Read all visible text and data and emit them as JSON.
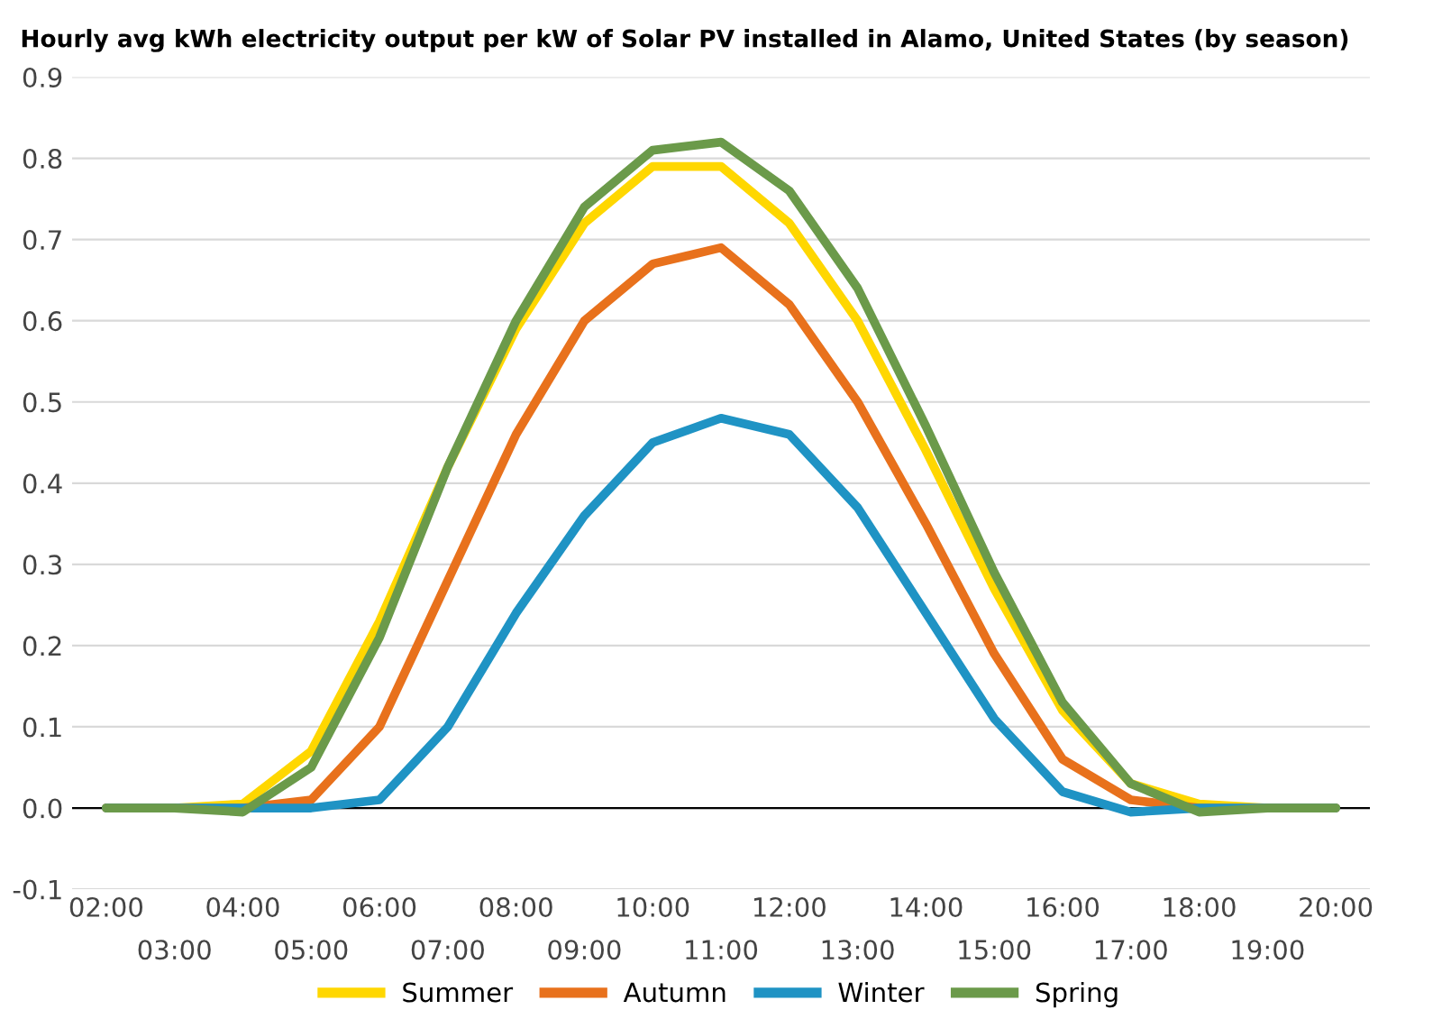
{
  "chart_data": {
    "type": "line",
    "title": "Hourly avg kWh electricity output per kW of Solar PV installed in Alamo, United States (by season)",
    "categories": [
      "02:00",
      "03:00",
      "04:00",
      "05:00",
      "06:00",
      "07:00",
      "08:00",
      "09:00",
      "10:00",
      "11:00",
      "12:00",
      "13:00",
      "14:00",
      "15:00",
      "16:00",
      "17:00",
      "18:00",
      "19:00",
      "20:00"
    ],
    "series": [
      {
        "name": "Summer",
        "color": "#ffd700",
        "values": [
          0,
          0,
          0.005,
          0.07,
          0.23,
          0.42,
          0.59,
          0.72,
          0.79,
          0.79,
          0.72,
          0.6,
          0.44,
          0.27,
          0.12,
          0.03,
          0.005,
          0,
          0
        ]
      },
      {
        "name": "Autumn",
        "color": "#e8711c",
        "values": [
          0,
          0,
          0,
          0.01,
          0.1,
          0.28,
          0.46,
          0.6,
          0.67,
          0.69,
          0.62,
          0.5,
          0.35,
          0.19,
          0.06,
          0.01,
          0,
          0,
          0
        ]
      },
      {
        "name": "Winter",
        "color": "#1f93c4",
        "values": [
          0,
          0,
          0,
          0,
          0.01,
          0.1,
          0.24,
          0.36,
          0.45,
          0.48,
          0.46,
          0.37,
          0.24,
          0.11,
          0.02,
          -0.005,
          0,
          0,
          0
        ]
      },
      {
        "name": "Spring",
        "color": "#6b9a4a",
        "values": [
          0,
          0,
          -0.005,
          0.05,
          0.21,
          0.42,
          0.6,
          0.74,
          0.81,
          0.82,
          0.76,
          0.64,
          0.47,
          0.29,
          0.13,
          0.03,
          -0.005,
          0,
          0
        ]
      }
    ],
    "ylim": [
      -0.1,
      0.9
    ],
    "yticks": [
      -0.1,
      {
        "value": 0,
        "label": "0.0"
      },
      0.1,
      0.2,
      0.3,
      0.4,
      0.5,
      0.6,
      0.7,
      0.8,
      0.9
    ],
    "grid": "y",
    "legend": "bottom",
    "line_style": "solid",
    "marker": "none",
    "ref_lines": [
      {
        "axis": "y",
        "value": 0,
        "color": "#000000"
      }
    ]
  }
}
